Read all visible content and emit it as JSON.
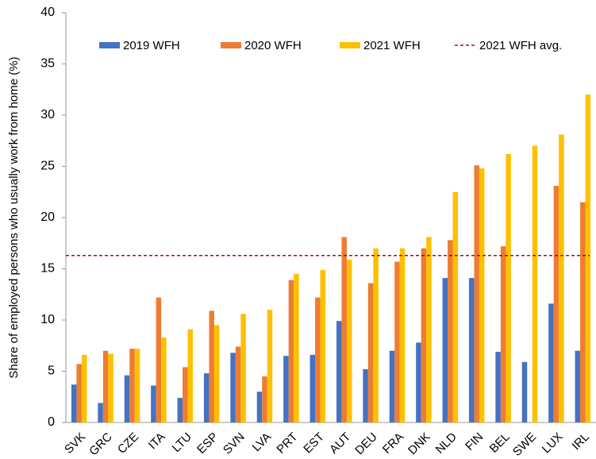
{
  "chart_data": {
    "type": "bar",
    "y_label": "Share of employed persons who usually work from home (%)",
    "categories": [
      "SVK",
      "GRC",
      "CZE",
      "ITA",
      "LTU",
      "ESP",
      "SVN",
      "LVA",
      "PRT",
      "EST",
      "AUT",
      "DEU",
      "FRA",
      "DNK",
      "NLD",
      "FIN",
      "BEL",
      "SWE",
      "LUX",
      "IRL"
    ],
    "series": [
      {
        "name": "2019 WFH",
        "color": "#4472c4",
        "values": [
          3.7,
          1.9,
          4.6,
          3.6,
          2.4,
          4.8,
          6.8,
          3.0,
          6.5,
          6.6,
          9.9,
          5.2,
          7.0,
          7.8,
          14.1,
          14.1,
          6.9,
          5.9,
          11.6,
          7.0
        ]
      },
      {
        "name": "2020 WFH",
        "color": "#ed7d31",
        "values": [
          5.7,
          7.0,
          7.2,
          12.2,
          5.4,
          10.9,
          7.4,
          4.5,
          13.9,
          12.2,
          18.1,
          13.6,
          15.7,
          17.0,
          17.8,
          25.1,
          17.2,
          null,
          23.1,
          21.5
        ]
      },
      {
        "name": "2021 WFH",
        "color": "#ffc000",
        "values": [
          6.6,
          6.7,
          7.2,
          8.3,
          9.1,
          9.5,
          10.6,
          11.0,
          14.5,
          14.9,
          15.9,
          17.0,
          17.0,
          18.1,
          22.5,
          24.8,
          26.2,
          27.0,
          28.1,
          32.0
        ]
      }
    ],
    "reference_line": {
      "name": "2021 WFH avg.",
      "value": 16.3,
      "color": "#c00000",
      "dashed": true
    },
    "ylim": [
      0,
      40
    ],
    "yticks": [
      0,
      5,
      10,
      15,
      20,
      25,
      30,
      35,
      40
    ],
    "grid": false
  }
}
